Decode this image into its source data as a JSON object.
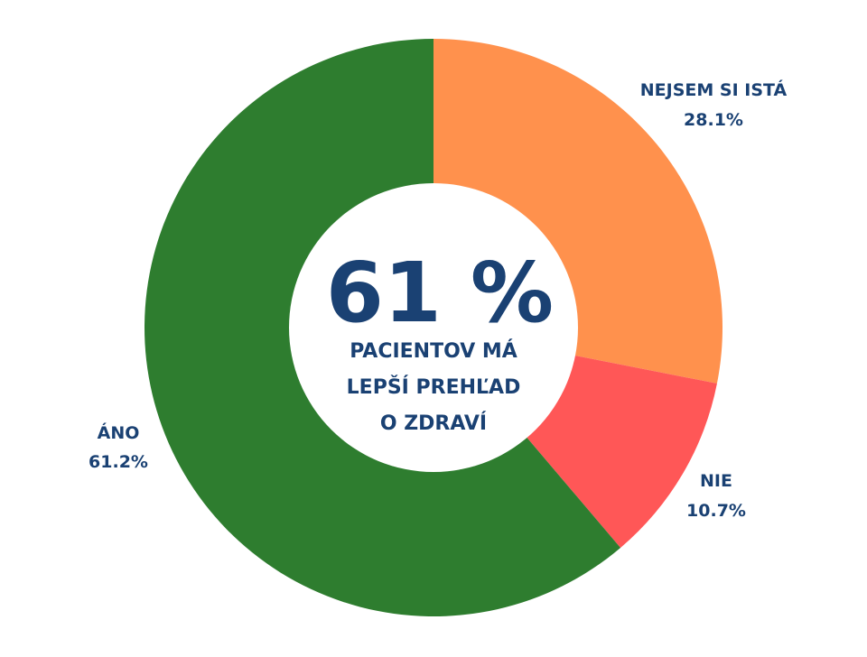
{
  "chart_data": {
    "type": "pie",
    "donut": true,
    "start": "top",
    "direction": "clockwise",
    "slices": [
      {
        "name": "NEJSEM SI ISTÁ",
        "value": 28.1,
        "label": "28.1%",
        "color": "#FF914D"
      },
      {
        "name": "NIE",
        "value": 10.7,
        "label": "10.7%",
        "color": "#FF5757"
      },
      {
        "name": "ÁNO",
        "value": 61.2,
        "label": "61.2%",
        "color": "#2E7D2F"
      }
    ],
    "center": {
      "headline": "61 %",
      "lines": [
        "PACIENTOV MÁ",
        "LEPŠÍ PREHĽAD",
        "O ZDRAVÍ"
      ]
    },
    "text_color": "#1A4173"
  }
}
